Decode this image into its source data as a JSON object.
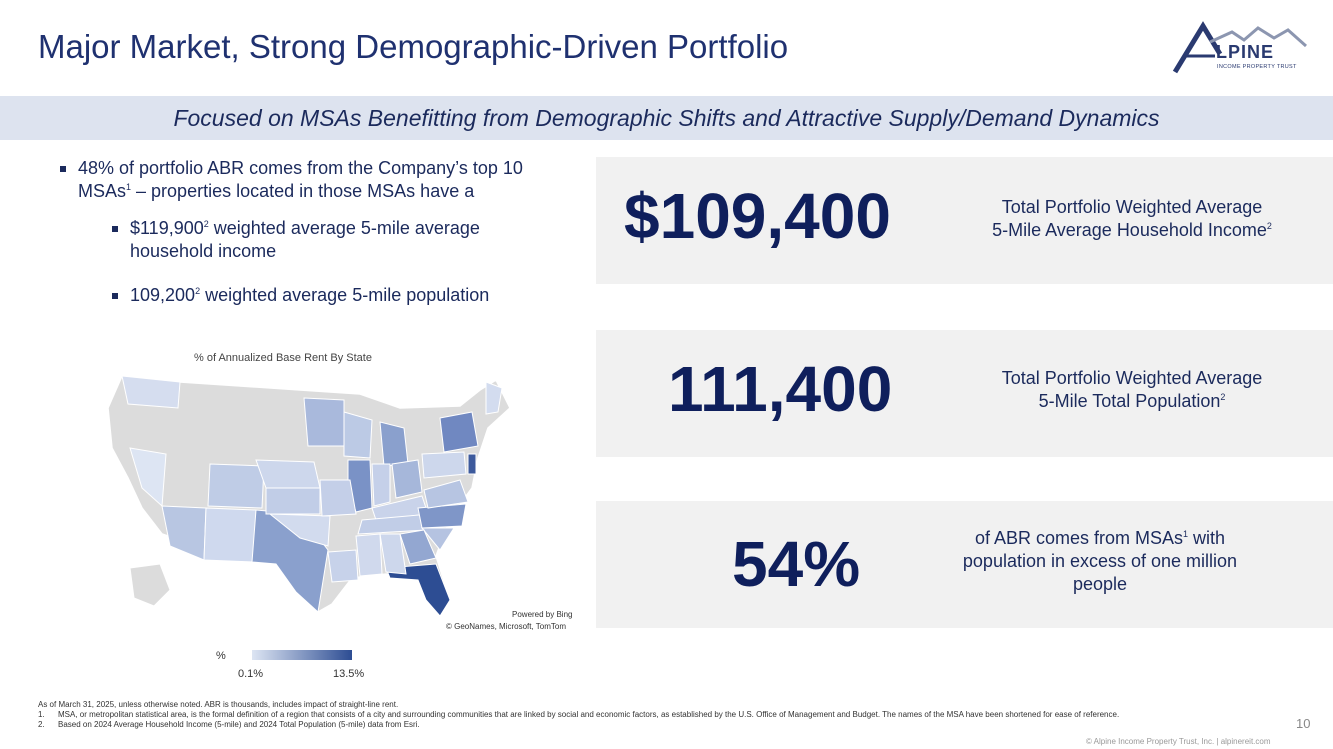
{
  "title": "Major Market, Strong Demographic-Driven Portfolio",
  "logo": {
    "word": "LPINE",
    "subtitle": "INCOME PROPERTY TRUST"
  },
  "banner": "Focused on MSAs Benefitting from Demographic Shifts and Attractive Supply/Demand Dynamics",
  "bullets": {
    "main_a": "48% of portfolio ABR comes from the Company’s top 10 MSAs",
    "main_sup": "1",
    "main_b": " – properties located in those MSAs have a",
    "sub1_a": "$119,900",
    "sub1_sup": "2",
    "sub1_b": " weighted average 5-mile average household income",
    "sub2_a": "109,200",
    "sub2_sup": "2",
    "sub2_b": " weighted average 5-mile population"
  },
  "map": {
    "title": "% of Annualized Base Rent By State",
    "powered": "Powered by Bing",
    "credits": "© GeoNames, Microsoft, TomTom",
    "legend_label": "%",
    "legend_min": "0.1%",
    "legend_max": "13.5%",
    "color_low": "#dde5f3",
    "color_high": "#2d4d93",
    "no_data_color": "#dcdcdc"
  },
  "stats": [
    {
      "value": "$109,400",
      "desc_a": "Total Portfolio Weighted Average",
      "desc_b": "5-Mile Average Household Income",
      "desc_sup": "2"
    },
    {
      "value": "111,400",
      "desc_a": "Total Portfolio Weighted Average",
      "desc_b": "5-Mile Total Population",
      "desc_sup": "2"
    },
    {
      "value": "54%",
      "desc_a": "of ABR comes from MSAs",
      "desc_sup": "1",
      "desc_b": " with",
      "desc_c": "population in excess of one million",
      "desc_d": "people"
    }
  ],
  "footnotes": {
    "intro": "As of March 31, 2025, unless otherwise noted. ABR is thousands, includes impact of straight-line rent.",
    "n1_num": "1.",
    "n1": "MSA, or metropolitan statistical area, is the formal definition of a region that consists of a city and surrounding communities that are linked by social and economic factors, as established by the U.S. Office of Management and Budget. The names of the MSA have been shortened for ease of reference.",
    "n2_num": "2.",
    "n2": "Based on 2024 Average Household Income (5-mile) and 2024 Total Population (5-mile) data from Esri."
  },
  "page_number": "10",
  "copyright": "© Alpine Income Property Trust, Inc.  |  alpinereit.com"
}
